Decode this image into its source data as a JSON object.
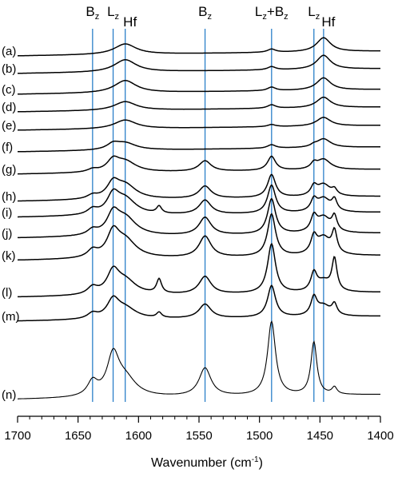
{
  "chart_data": {
    "type": "line",
    "title": "",
    "xlabel": "Wavenumber (cm",
    "xlabel_sup": "-1",
    "xlabel_close": ")",
    "ylabel": "",
    "xlim": [
      1700,
      1400
    ],
    "x_reversed": true,
    "grid": false,
    "legend": "none",
    "x_ticks": [
      1700,
      1650,
      1600,
      1550,
      1500,
      1450,
      1400
    ],
    "x_tick_labels": [
      "1700",
      "1650",
      "1600",
      "1550",
      "1500",
      "1450",
      "1400"
    ],
    "reference_lines": [
      {
        "x": 1638,
        "label": "B",
        "sub": "z",
        "color": "#2a7fc9"
      },
      {
        "x": 1621,
        "label": "L",
        "sub": "z",
        "color": "#2a7fc9"
      },
      {
        "x": 1545,
        "label": "B",
        "sub": "z",
        "color": "#2a7fc9"
      },
      {
        "x": 1490,
        "label": "L",
        "sub": "z",
        "suffix": "+B",
        "sub2": "z",
        "color": "#2a7fc9"
      },
      {
        "x": 1455,
        "label": "L",
        "sub": "z",
        "color": "#2a7fc9"
      }
    ],
    "hf_lines": [
      {
        "x": 1611,
        "label": "Hf",
        "color": "#2a7fc9"
      },
      {
        "x": 1447,
        "label": "Hf",
        "color": "#2a7fc9"
      }
    ],
    "series": [
      {
        "name": "(a)",
        "peaks": [
          [
            1611,
            6.0,
            22
          ],
          [
            1490,
            1.8,
            8
          ],
          [
            1447,
            8.0,
            14
          ]
        ]
      },
      {
        "name": "(b)",
        "peaks": [
          [
            1611,
            7.0,
            22
          ],
          [
            1490,
            1.8,
            8
          ],
          [
            1447,
            8.0,
            14
          ]
        ]
      },
      {
        "name": "(c)",
        "peaks": [
          [
            1611,
            7.0,
            22
          ],
          [
            1490,
            2.0,
            8
          ],
          [
            1447,
            7.0,
            14
          ]
        ]
      },
      {
        "name": "(d)",
        "peaks": [
          [
            1611,
            5.0,
            22
          ],
          [
            1490,
            2.0,
            8
          ],
          [
            1447,
            6.0,
            14
          ]
        ]
      },
      {
        "name": "(e)",
        "peaks": [
          [
            1611,
            5.0,
            22
          ],
          [
            1490,
            1.2,
            8
          ],
          [
            1447,
            5.0,
            14
          ]
        ]
      },
      {
        "name": "(f)",
        "peaks": [
          [
            1621,
            3.0,
            12
          ],
          [
            1611,
            4.0,
            22
          ],
          [
            1490,
            2.0,
            8
          ],
          [
            1455,
            1.0,
            6
          ],
          [
            1447,
            5.0,
            14
          ]
        ]
      },
      {
        "name": "(g)",
        "peaks": [
          [
            1638,
            1.5,
            10
          ],
          [
            1621,
            6.0,
            12
          ],
          [
            1611,
            6.0,
            22
          ],
          [
            1545,
            6.0,
            12
          ],
          [
            1490,
            8.0,
            8
          ],
          [
            1455,
            3.0,
            6
          ],
          [
            1447,
            6.0,
            14
          ]
        ]
      },
      {
        "name": "(h)",
        "peaks": [
          [
            1638,
            2.0,
            10
          ],
          [
            1621,
            8.0,
            12
          ],
          [
            1611,
            8.0,
            22
          ],
          [
            1545,
            7.0,
            12
          ],
          [
            1490,
            13.0,
            8
          ],
          [
            1455,
            5.0,
            6
          ],
          [
            1447,
            7.0,
            14
          ],
          [
            1438,
            3.0,
            5
          ]
        ]
      },
      {
        "name": "(i)",
        "peaks": [
          [
            1638,
            3.0,
            10
          ],
          [
            1621,
            10.0,
            12
          ],
          [
            1611,
            9.0,
            22
          ],
          [
            1583,
            4.0,
            5
          ],
          [
            1545,
            8.0,
            12
          ],
          [
            1490,
            16.0,
            8
          ],
          [
            1455,
            6.0,
            6
          ],
          [
            1447,
            8.0,
            14
          ],
          [
            1438,
            6.0,
            5
          ]
        ]
      },
      {
        "name": "(j)",
        "peaks": [
          [
            1638,
            3.0,
            10
          ],
          [
            1621,
            11.0,
            12
          ],
          [
            1611,
            10.0,
            22
          ],
          [
            1545,
            10.0,
            12
          ],
          [
            1490,
            20.0,
            8
          ],
          [
            1455,
            8.0,
            6
          ],
          [
            1447,
            9.0,
            14
          ],
          [
            1438,
            8.0,
            5
          ]
        ]
      },
      {
        "name": "(k)",
        "peaks": [
          [
            1638,
            4.0,
            10
          ],
          [
            1621,
            13.0,
            12
          ],
          [
            1611,
            10.0,
            22
          ],
          [
            1545,
            12.0,
            12
          ],
          [
            1490,
            24.0,
            8
          ],
          [
            1455,
            9.0,
            6
          ],
          [
            1447,
            10.0,
            14
          ],
          [
            1438,
            12.0,
            5
          ]
        ]
      },
      {
        "name": "(l)",
        "peaks": [
          [
            1638,
            4.0,
            10
          ],
          [
            1621,
            12.0,
            12
          ],
          [
            1611,
            8.0,
            22
          ],
          [
            1583,
            8.0,
            5
          ],
          [
            1545,
            10.0,
            12
          ],
          [
            1490,
            28.0,
            8
          ],
          [
            1455,
            10.0,
            6
          ],
          [
            1447,
            6.0,
            14
          ],
          [
            1438,
            18.0,
            5
          ]
        ]
      },
      {
        "name": "(m)",
        "peaks": [
          [
            1638,
            3.0,
            10
          ],
          [
            1621,
            10.0,
            12
          ],
          [
            1611,
            6.0,
            22
          ],
          [
            1583,
            3.0,
            5
          ],
          [
            1545,
            8.0,
            12
          ],
          [
            1490,
            18.0,
            8
          ],
          [
            1455,
            10.0,
            6
          ],
          [
            1447,
            6.0,
            14
          ],
          [
            1438,
            6.0,
            5
          ]
        ]
      },
      {
        "name": "(n)",
        "peaks": [
          [
            1638,
            8.0,
            10
          ],
          [
            1621,
            22.0,
            12
          ],
          [
            1611,
            10.0,
            22
          ],
          [
            1545,
            16.0,
            12
          ],
          [
            1490,
            42.0,
            8
          ],
          [
            1455,
            30.0,
            6
          ],
          [
            1438,
            4.0,
            5
          ]
        ]
      }
    ]
  }
}
